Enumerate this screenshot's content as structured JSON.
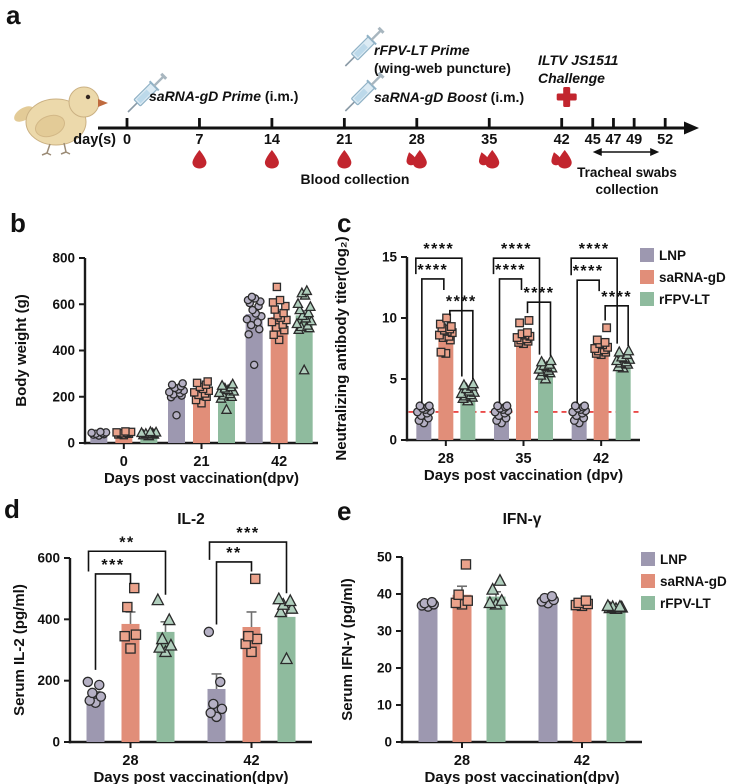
{
  "panels": {
    "a": "a",
    "b": "b",
    "c": "c",
    "d": "d",
    "e": "e"
  },
  "colors": {
    "lnp": "#9d98b0",
    "sarna": "#e18e79",
    "rfpv": "#8fbb9e",
    "lnp_marker_fill": "#b5b0c4",
    "sarna_marker_fill": "#eba28b",
    "rfpv_marker_fill": "#b0cfbd",
    "blood_drop": "#c2252e",
    "challenge_cross": "#c2252e",
    "reference_line": "#e8312f",
    "axis": "#1a1a1a",
    "error_bar": "#6f6f6f"
  },
  "timeline": {
    "day_axis_label": "day(s)",
    "days": [
      0,
      7,
      14,
      21,
      28,
      35,
      42,
      45,
      47,
      49,
      52
    ],
    "events": {
      "prime_day0": {
        "name": "saRNA-gD Prime",
        "route": "(i.m.)",
        "day": 0
      },
      "prime_day21": {
        "name": "rFPV-LT Prime",
        "route": "(wing-web puncture)",
        "day": 21
      },
      "boost_day21": {
        "name": "saRNA-gD Boost",
        "route": "(i.m.)",
        "day": 21
      },
      "challenge_day42": {
        "line1": "ILTV JS1511",
        "line2": "Challenge",
        "day": 42
      }
    },
    "blood": {
      "label": "Blood collection",
      "single_drop_days": [
        7,
        14,
        21
      ],
      "double_drop_days": [
        28,
        35,
        42
      ]
    },
    "swabs": {
      "line1": "Tracheal swabs",
      "line2": "collection",
      "from_day": 45,
      "to_day": 52
    }
  },
  "chart_data": [
    {
      "id": "b",
      "type": "bar",
      "title": "",
      "ylabel": "Body weight (g)",
      "xlabel": "Days post vaccination(dpv)",
      "ylim": [
        0,
        800
      ],
      "yticks": [
        0,
        200,
        400,
        600,
        800
      ],
      "grid": false,
      "legend": false,
      "categories": [
        "0",
        "21",
        "42"
      ],
      "series": [
        {
          "name": "LNP",
          "color": "#9d98b0",
          "marker_fill": "#b5b0c4",
          "marker": "circle",
          "values": [
            40,
            218,
            558
          ],
          "errors": [
            3,
            10,
            28
          ],
          "points": [
            [
              32,
              36,
              38,
              40,
              42,
              44,
              46,
              48
            ],
            [
              120,
              198,
              205,
              210,
              215,
              220,
              226,
              231,
              238,
              245,
              252,
              258
            ],
            [
              338,
              470,
              492,
              510,
              522,
              535,
              548,
              560,
              575,
              592,
              605,
              612,
              618,
              625,
              632
            ]
          ]
        },
        {
          "name": "saRNA-gD",
          "color": "#e18e79",
          "marker_fill": "#eba28b",
          "marker": "square",
          "values": [
            42,
            214,
            545
          ],
          "errors": [
            3,
            10,
            18
          ],
          "points": [
            [
              34,
              37,
              40,
              42,
              44,
              46,
              48,
              50
            ],
            [
              172,
              186,
              200,
              208,
              214,
              219,
              226,
              234,
              243,
              252,
              260,
              266
            ],
            [
              446,
              468,
              488,
              500,
              512,
              523,
              532,
              542,
              552,
              562,
              577,
              592,
              608,
              618,
              675
            ]
          ]
        },
        {
          "name": "rFPV-LT",
          "color": "#8fbb9e",
          "marker_fill": "#b0cfbd",
          "marker": "triangle",
          "values": [
            38,
            212,
            552
          ],
          "errors": [
            3,
            8,
            20
          ],
          "points": [
            [
              30,
              34,
              37,
              40,
              42,
              44,
              46,
              48
            ],
            [
              144,
              192,
              200,
              206,
              212,
              217,
              223,
              229,
              236,
              242,
              248,
              254
            ],
            [
              315,
              490,
              497,
              502,
              508,
              515,
              527,
              539,
              550,
              562,
              575,
              589,
              602,
              638,
              648,
              658
            ]
          ]
        }
      ]
    },
    {
      "id": "c",
      "type": "bar",
      "title": "",
      "ylabel": "Neutralizing antibody titer(log₂)",
      "xlabel": "Days post vaccination (dpv)",
      "ylim": [
        0,
        15
      ],
      "yticks": [
        0,
        5,
        10,
        15
      ],
      "grid": false,
      "legend": true,
      "categories": [
        "28",
        "35",
        "42"
      ],
      "refline": {
        "y": 2.3,
        "color": "#e8312f"
      },
      "series": [
        {
          "name": "LNP",
          "color": "#9d98b0",
          "marker_fill": "#b5b0c4",
          "marker": "circle",
          "values": [
            2.4,
            2.4,
            2.4
          ],
          "errors": [
            0.15,
            0.15,
            0.15
          ],
          "points": [
            [
              1.4,
              1.6,
              1.8,
              2.0,
              2.2,
              2.3,
              2.4,
              2.5,
              2.6,
              2.7,
              2.8,
              2.8
            ],
            [
              1.4,
              1.6,
              1.8,
              2.0,
              2.2,
              2.3,
              2.4,
              2.5,
              2.6,
              2.7,
              2.8,
              2.8
            ],
            [
              1.4,
              1.6,
              1.8,
              2.0,
              2.2,
              2.3,
              2.4,
              2.5,
              2.6,
              2.7,
              2.8,
              2.8
            ]
          ]
        },
        {
          "name": "saRNA-gD",
          "color": "#e18e79",
          "marker_fill": "#eba28b",
          "marker": "square",
          "values": [
            8.9,
            8.4,
            7.7
          ],
          "errors": [
            0.25,
            0.2,
            0.2
          ],
          "points": [
            [
              7.1,
              7.2,
              8.2,
              8.4,
              8.5,
              8.6,
              8.8,
              8.9,
              9.0,
              9.1,
              9.2,
              9.3,
              9.5,
              10.0
            ],
            [
              7.9,
              8.0,
              8.1,
              8.2,
              8.3,
              8.4,
              8.5,
              8.6,
              8.7,
              8.8,
              9.6,
              9.8
            ],
            [
              7.0,
              7.1,
              7.2,
              7.3,
              7.4,
              7.5,
              7.6,
              7.8,
              7.9,
              8.0,
              8.2,
              9.2
            ]
          ]
        },
        {
          "name": "rFPV-LT",
          "color": "#8fbb9e",
          "marker_fill": "#b0cfbd",
          "marker": "triangle",
          "values": [
            3.9,
            5.9,
            6.5
          ],
          "errors": [
            0.2,
            0.15,
            0.15
          ],
          "points": [
            [
              3.2,
              3.4,
              3.5,
              3.6,
              3.7,
              3.8,
              3.9,
              4.0,
              4.2,
              4.4,
              4.5,
              4.6
            ],
            [
              5.0,
              5.3,
              5.5,
              5.6,
              5.7,
              5.8,
              5.9,
              6.0,
              6.1,
              6.2,
              6.4,
              6.5
            ],
            [
              5.9,
              6.0,
              6.2,
              6.3,
              6.4,
              6.5,
              6.6,
              6.7,
              6.8,
              7.0,
              7.2,
              7.3
            ]
          ]
        }
      ],
      "brackets": [
        {
          "cat": 0,
          "a": 0,
          "b": 1,
          "y": 13.2,
          "da": 3.0,
          "db": 12.3,
          "label": "****",
          "sa": -2,
          "sb": -2
        },
        {
          "cat": 0,
          "a": 0,
          "b": 2,
          "y": 14.9,
          "da": 13.6,
          "db": 5.2,
          "label": "****",
          "sa": -8,
          "sb": -6
        },
        {
          "cat": 0,
          "a": 1,
          "b": 2,
          "y": 10.6,
          "da": 10.2,
          "db": 5.0,
          "label": "****",
          "sa": 4,
          "sb": 5
        },
        {
          "cat": 1,
          "a": 0,
          "b": 1,
          "y": 13.2,
          "da": 3.0,
          "db": 12.3,
          "label": "****",
          "sa": -2,
          "sb": -2
        },
        {
          "cat": 1,
          "a": 0,
          "b": 2,
          "y": 14.9,
          "da": 13.6,
          "db": 7.0,
          "label": "****",
          "sa": -8,
          "sb": -6
        },
        {
          "cat": 1,
          "a": 1,
          "b": 2,
          "y": 11.3,
          "da": 10.4,
          "db": 6.9,
          "label": "****",
          "sa": 4,
          "sb": 5
        },
        {
          "cat": 2,
          "a": 0,
          "b": 1,
          "y": 13.1,
          "da": 3.0,
          "db": 12.2,
          "label": "****",
          "sa": -2,
          "sb": -2
        },
        {
          "cat": 2,
          "a": 0,
          "b": 2,
          "y": 14.9,
          "da": 13.5,
          "db": 7.9,
          "label": "****",
          "sa": -8,
          "sb": -6
        },
        {
          "cat": 2,
          "a": 1,
          "b": 2,
          "y": 11.0,
          "da": 9.8,
          "db": 7.7,
          "label": "****",
          "sa": 4,
          "sb": 5
        }
      ]
    },
    {
      "id": "d",
      "type": "bar",
      "title": "IL-2",
      "ylabel": "Serum IL-2 (pg/ml)",
      "xlabel": "Days post vaccination(dpv)",
      "ylim": [
        0,
        600
      ],
      "yticks": [
        0,
        200,
        400,
        600
      ],
      "grid": false,
      "legend": false,
      "categories": [
        "28",
        "42"
      ],
      "series": [
        {
          "name": "LNP",
          "color": "#9d98b0",
          "marker_fill": "#b5b0c4",
          "marker": "circle",
          "values": [
            150,
            173
          ],
          "errors": [
            14,
            49
          ],
          "points": [
            [
              128,
              135,
              148,
              160,
              186,
              196
            ],
            [
              82,
              95,
              108,
              124,
              196,
              359
            ]
          ]
        },
        {
          "name": "saRNA-gD",
          "color": "#e18e79",
          "marker_fill": "#eba28b",
          "marker": "square",
          "values": [
            385,
            375
          ],
          "errors": [
            39,
            49
          ],
          "points": [
            [
              305,
              345,
              350,
              440,
              502
            ],
            [
              294,
              320,
              336,
              345,
              532
            ]
          ]
        },
        {
          "name": "rFPV-LT",
          "color": "#8fbb9e",
          "marker_fill": "#b0cfbd",
          "marker": "triangle",
          "values": [
            359,
            408
          ],
          "errors": [
            33,
            32
          ],
          "points": [
            [
              294,
              308,
              315,
              336,
              398,
              463
            ],
            [
              271,
              424,
              435,
              448,
              460,
              466
            ]
          ]
        }
      ],
      "brackets": [
        {
          "cat": 0,
          "a": 0,
          "b": 1,
          "y": 548,
          "da": 235,
          "db": 515,
          "label": "***"
        },
        {
          "cat": 0,
          "a": 0,
          "b": 2,
          "y": 622,
          "da": 556,
          "db": 480,
          "label": "**",
          "sa": -7
        },
        {
          "cat": 1,
          "a": 0,
          "b": 1,
          "y": 587,
          "da": 383,
          "db": 556,
          "label": "**"
        },
        {
          "cat": 1,
          "a": 0,
          "b": 2,
          "y": 652,
          "da": 594,
          "db": 485,
          "label": "***",
          "sa": -7
        }
      ]
    },
    {
      "id": "e",
      "type": "bar",
      "title": "IFN-γ",
      "ylabel": "Serum IFN-γ (pg/ml)",
      "xlabel": "Days post vaccination(dpv)",
      "ylim": [
        0,
        50
      ],
      "yticks": [
        0,
        10,
        20,
        30,
        40,
        50
      ],
      "grid": false,
      "legend": true,
      "categories": [
        "28",
        "42"
      ],
      "series": [
        {
          "name": "LNP",
          "color": "#9d98b0",
          "marker_fill": "#b5b0c4",
          "marker": "circle",
          "values": [
            37.2,
            38.2
          ],
          "errors": [
            0.4,
            0.4
          ],
          "points": [
            [
              36.6,
              36.9,
              37.2,
              37.5,
              37.8
            ],
            [
              37.5,
              38.0,
              38.4,
              38.9,
              39.4
            ]
          ]
        },
        {
          "name": "saRNA-gD",
          "color": "#e18e79",
          "marker_fill": "#eba28b",
          "marker": "square",
          "values": [
            39.8,
            37.2
          ],
          "errors": [
            2.3,
            0.4
          ],
          "points": [
            [
              37.2,
              37.6,
              38.2,
              39.8,
              48.0
            ],
            [
              36.8,
              37.0,
              37.3,
              37.6,
              38.2
            ]
          ]
        },
        {
          "name": "rFPV-LT",
          "color": "#8fbb9e",
          "marker_fill": "#b0cfbd",
          "marker": "triangle",
          "values": [
            39.3,
            36.3
          ],
          "errors": [
            1.3,
            0.2
          ],
          "points": [
            [
              37.2,
              37.6,
              38.2,
              41.2,
              43.6
            ],
            [
              36.0,
              36.2,
              36.4,
              36.5,
              36.6,
              36.8
            ]
          ]
        }
      ]
    }
  ]
}
